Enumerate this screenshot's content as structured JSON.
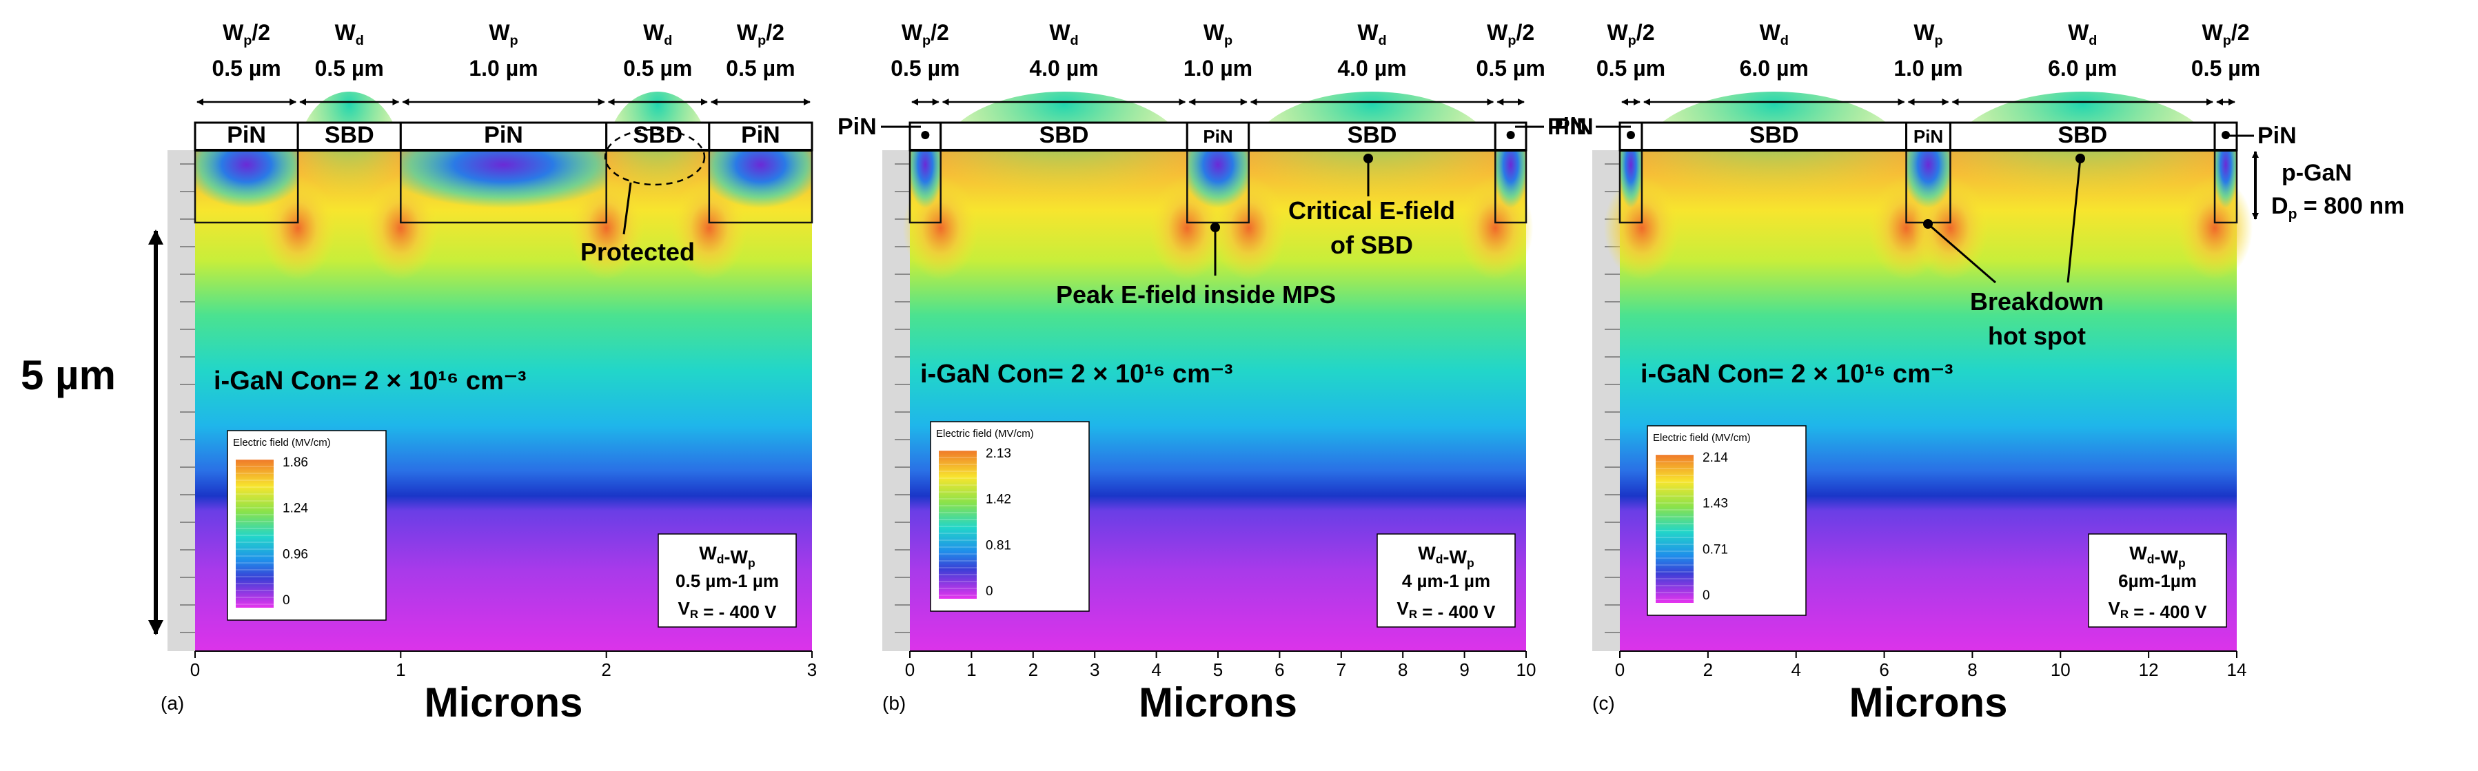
{
  "panels": [
    {
      "id": "a",
      "panel_label": "(a)",
      "x_axis_label": "Microns",
      "x_ticks": [
        "0",
        "1",
        "2",
        "3"
      ],
      "x_range": [
        0,
        3
      ],
      "regions": [
        {
          "type": "PiN",
          "w_label": "Wp/2",
          "value": "0.5 µm",
          "start": 0.0,
          "end": 0.5
        },
        {
          "type": "SBD",
          "w_label": "Wd",
          "value": "0.5 µm",
          "start": 0.5,
          "end": 1.0
        },
        {
          "type": "PiN",
          "w_label": "Wp",
          "value": "1.0 µm",
          "start": 1.0,
          "end": 2.0
        },
        {
          "type": "SBD",
          "w_label": "Wd",
          "value": "0.5 µm",
          "start": 2.0,
          "end": 2.5
        },
        {
          "type": "PiN",
          "w_label": "Wp/2",
          "value": "0.5 µm",
          "start": 2.5,
          "end": 3.0
        }
      ],
      "concentration": "i-GaN Con= 2 × 10¹⁶ cm⁻³",
      "legend": {
        "title": "Electric field (MV/cm)",
        "ticks": [
          "1.86",
          "1.24",
          "0.96",
          "0"
        ]
      },
      "params": {
        "line1": "Wd-Wp",
        "line2": "0.5 µm-1 µm",
        "line3": "VR = - 400 V"
      },
      "annotations": {
        "protected": "Protected"
      },
      "scale_label": "5 µm"
    },
    {
      "id": "b",
      "panel_label": "(b)",
      "x_axis_label": "Microns",
      "x_ticks": [
        "0",
        "1",
        "2",
        "3",
        "4",
        "5",
        "6",
        "7",
        "8",
        "9",
        "10"
      ],
      "x_range": [
        0,
        10
      ],
      "regions": [
        {
          "type": "PiN",
          "w_label": "Wp/2",
          "value": "0.5 µm",
          "start": 0.0,
          "end": 0.5
        },
        {
          "type": "SBD",
          "w_label": "Wd",
          "value": "4.0 µm",
          "start": 0.5,
          "end": 4.5
        },
        {
          "type": "PiN",
          "w_label": "Wp",
          "value": "1.0 µm",
          "start": 4.5,
          "end": 5.5
        },
        {
          "type": "SBD",
          "w_label": "Wd",
          "value": "4.0 µm",
          "start": 5.5,
          "end": 9.5
        },
        {
          "type": "PiN",
          "w_label": "Wp/2",
          "value": "0.5 µm",
          "start": 9.5,
          "end": 10.0
        }
      ],
      "concentration": "i-GaN Con= 2 × 10¹⁶ cm⁻³",
      "legend": {
        "title": "Electric field (MV/cm)",
        "ticks": [
          "2.13",
          "1.42",
          "0.81",
          "0"
        ]
      },
      "params": {
        "line1": "Wd-Wp",
        "line2": "4 µm-1 µm",
        "line3": "VR = - 400 V"
      },
      "annotations": {
        "critical_1": "Critical E-field",
        "critical_2": "of SBD",
        "peak": "Peak E-field inside MPS",
        "pin_left": "PiN",
        "pin_right": "PiN"
      }
    },
    {
      "id": "c",
      "panel_label": "(c)",
      "x_axis_label": "Microns",
      "x_ticks": [
        "0",
        "2",
        "4",
        "6",
        "8",
        "10",
        "12",
        "14"
      ],
      "x_range": [
        0,
        14
      ],
      "regions": [
        {
          "type": "PiN",
          "w_label": "Wp/2",
          "value": "0.5 µm",
          "start": 0.0,
          "end": 0.5
        },
        {
          "type": "SBD",
          "w_label": "Wd",
          "value": "6.0 µm",
          "start": 0.5,
          "end": 6.5
        },
        {
          "type": "PiN",
          "w_label": "Wp",
          "value": "1.0 µm",
          "start": 6.5,
          "end": 7.5
        },
        {
          "type": "SBD",
          "w_label": "Wd",
          "value": "6.0 µm",
          "start": 7.5,
          "end": 13.5
        },
        {
          "type": "PiN",
          "w_label": "Wp/2",
          "value": "0.5 µm",
          "start": 13.5,
          "end": 14.0
        }
      ],
      "concentration": "i-GaN Con= 2 × 10¹⁶ cm⁻³",
      "legend": {
        "title": "Electric field (MV/cm)",
        "ticks": [
          "2.14",
          "1.43",
          "0.71",
          "0"
        ]
      },
      "params": {
        "line1": "Wd-Wp",
        "line2": "6µm-1µm",
        "line3": "VR = - 400 V"
      },
      "annotations": {
        "breakdown_1": "Breakdown",
        "breakdown_2": "hot spot",
        "pin_left": "PiN",
        "pin_right": "PiN",
        "pgan": "p-GaN",
        "dp": "Dp = 800 nm"
      }
    }
  ],
  "colors": {
    "field_cold": "#d633e8",
    "field_deep": "#1a3fcf",
    "field_mid": "#22d6b0",
    "field_warm": "#f5ea2a",
    "field_hot": "#f07a2a"
  }
}
